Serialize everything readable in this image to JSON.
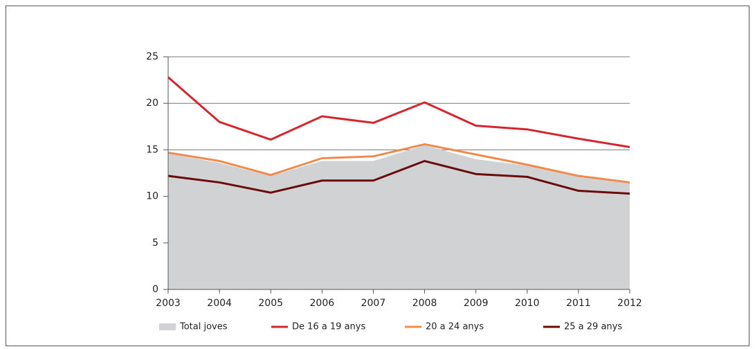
{
  "chart_data": {
    "type": "line",
    "categories": [
      "2003",
      "2004",
      "2005",
      "2006",
      "2007",
      "2008",
      "2009",
      "2010",
      "2011",
      "2012"
    ],
    "series": [
      {
        "name": "Total joves",
        "color": "#d1d2d4",
        "kind": "area",
        "values": [
          14.6,
          13.6,
          12.2,
          13.8,
          13.8,
          15.5,
          14.0,
          13.3,
          12.1,
          11.4
        ]
      },
      {
        "name": "De 16 a 19 anys",
        "color": "#d3262e",
        "values": [
          22.8,
          18.0,
          16.1,
          18.6,
          17.9,
          20.1,
          17.6,
          17.2,
          16.2,
          15.3
        ]
      },
      {
        "name": "20 a 24 anys",
        "color": "#f08a4b",
        "values": [
          14.7,
          13.8,
          12.3,
          14.1,
          14.3,
          15.6,
          14.5,
          13.4,
          12.2,
          11.5
        ]
      },
      {
        "name": "25 a 29 anys",
        "color": "#6b0a0a",
        "values": [
          12.2,
          11.5,
          10.4,
          11.7,
          11.7,
          13.8,
          12.4,
          12.1,
          10.6,
          10.3
        ]
      }
    ],
    "ylim": [
      0,
      25
    ],
    "yticks": [
      0,
      5,
      10,
      15,
      20,
      25
    ],
    "grid": true
  }
}
